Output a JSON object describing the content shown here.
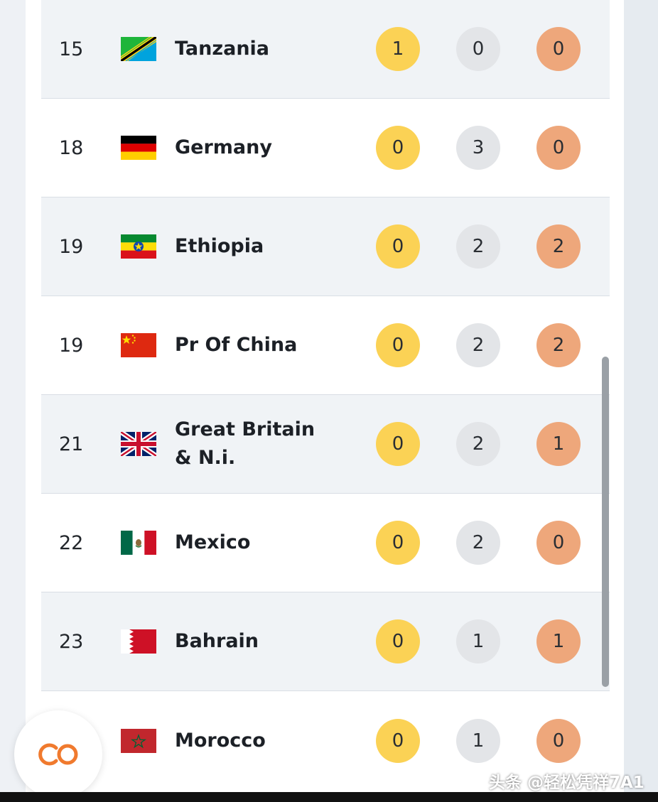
{
  "medals_table": {
    "rows": [
      {
        "rank": "15",
        "country": "Tanzania",
        "gold": "1",
        "silver": "0",
        "bronze": "0"
      },
      {
        "rank": "18",
        "country": "Germany",
        "gold": "0",
        "silver": "3",
        "bronze": "0"
      },
      {
        "rank": "19",
        "country": "Ethiopia",
        "gold": "0",
        "silver": "2",
        "bronze": "2"
      },
      {
        "rank": "19",
        "country": "Pr Of China",
        "gold": "0",
        "silver": "2",
        "bronze": "2"
      },
      {
        "rank": "21",
        "country": "Great Britain & N.i.",
        "gold": "0",
        "silver": "2",
        "bronze": "1"
      },
      {
        "rank": "22",
        "country": "Mexico",
        "gold": "0",
        "silver": "2",
        "bronze": "0"
      },
      {
        "rank": "23",
        "country": "Bahrain",
        "gold": "0",
        "silver": "1",
        "bronze": "1"
      },
      {
        "rank": "",
        "country": "Morocco",
        "gold": "0",
        "silver": "1",
        "bronze": "0"
      }
    ]
  },
  "colors": {
    "gold": "#fbd255",
    "silver": "#e3e5e8",
    "bronze": "#eea77b",
    "row_shade": "#f0f3f6",
    "fab_icon": "#f07a2e"
  },
  "fab": {
    "icon": "co-logo-icon"
  },
  "watermark": {
    "text": "头条 @轻松凭祥7A1"
  }
}
